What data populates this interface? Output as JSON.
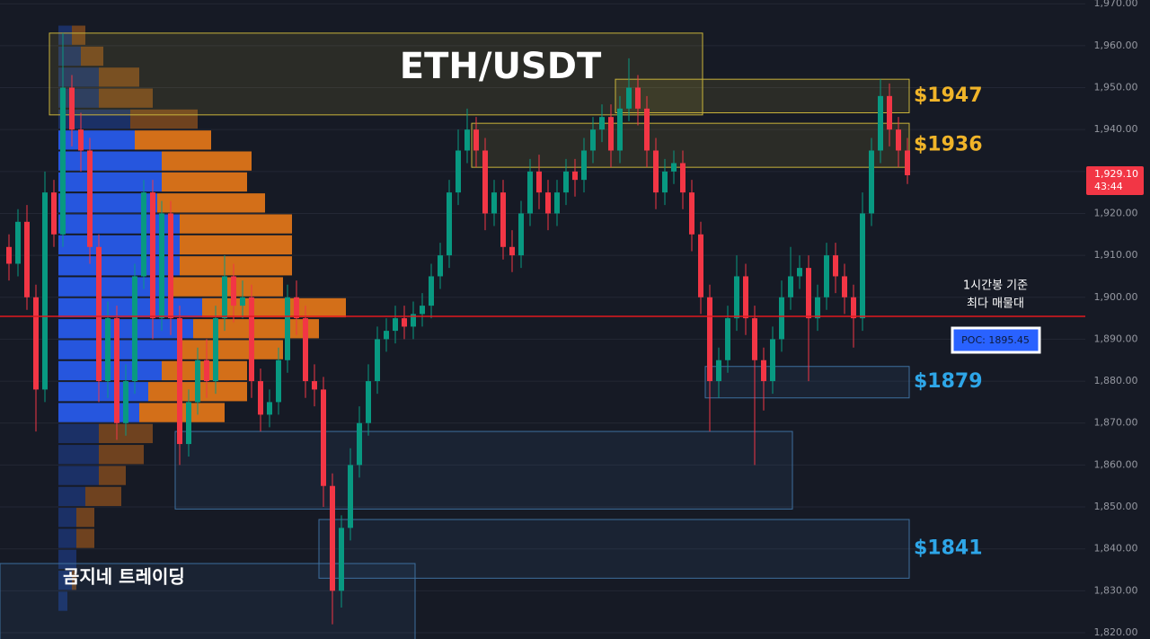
{
  "chart_data": {
    "type": "candlestick",
    "title": "ETH/USDT",
    "ylim": [
      1818.5,
      1970.9
    ],
    "yticks": [
      {
        "value": 1820,
        "label": "1,820.00"
      },
      {
        "value": 1830,
        "label": "1,830.00"
      },
      {
        "value": 1840,
        "label": "1,840.00"
      },
      {
        "value": 1850,
        "label": "1,850.00"
      },
      {
        "value": 1860,
        "label": "1,860.00"
      },
      {
        "value": 1870,
        "label": "1,870.00"
      },
      {
        "value": 1880,
        "label": "1,880.00"
      },
      {
        "value": 1890,
        "label": "1,890.00"
      },
      {
        "value": 1900,
        "label": "1,900.00"
      },
      {
        "value": 1910,
        "label": "1,910.00"
      },
      {
        "value": 1920,
        "label": "1,920.00"
      },
      {
        "value": 1930,
        "label": "1,930.00"
      },
      {
        "value": 1940,
        "label": "1,940.00"
      },
      {
        "value": 1950,
        "label": "1,950.00"
      },
      {
        "value": 1960,
        "label": "1,960.00"
      },
      {
        "value": 1970,
        "label": "1,970.00"
      }
    ],
    "grid": true,
    "up_color": "#089981",
    "down_color": "#f23645",
    "open": [
      1912,
      1908,
      1918,
      1900,
      1878,
      1925,
      1915,
      1950,
      1940,
      1935,
      1912,
      1880,
      1895,
      1870,
      1880,
      1905,
      1925,
      1895,
      1920,
      1895,
      1865,
      1875,
      1885,
      1880,
      1895,
      1905,
      1898,
      1900,
      1880,
      1872,
      1875,
      1885,
      1900,
      1895,
      1880,
      1878,
      1855,
      1830,
      1845,
      1860,
      1870,
      1880,
      1890,
      1892,
      1895,
      1893,
      1896,
      1898,
      1905,
      1910,
      1925,
      1935,
      1940,
      1935,
      1920,
      1925,
      1912,
      1910,
      1920,
      1930,
      1925,
      1920,
      1925,
      1930,
      1928,
      1935,
      1940,
      1943,
      1935,
      1945,
      1950,
      1945,
      1935,
      1925,
      1930,
      1932,
      1925,
      1915,
      1900,
      1880,
      1885,
      1895,
      1905,
      1895,
      1885,
      1880,
      1890,
      1900,
      1905,
      1907,
      1895,
      1900,
      1910,
      1905,
      1900,
      1895,
      1920,
      1935,
      1948,
      1940,
      1935
    ],
    "high": [
      1915,
      1921,
      1922,
      1903,
      1930,
      1928,
      1963,
      1953,
      1944,
      1938,
      1915,
      1899,
      1898,
      1884,
      1908,
      1928,
      1928,
      1923,
      1923,
      1898,
      1878,
      1888,
      1890,
      1898,
      1910,
      1908,
      1904,
      1903,
      1883,
      1878,
      1888,
      1903,
      1904,
      1898,
      1884,
      1881,
      1858,
      1848,
      1864,
      1874,
      1884,
      1893,
      1895,
      1898,
      1898,
      1899,
      1901,
      1908,
      1913,
      1928,
      1940,
      1945,
      1943,
      1938,
      1928,
      1928,
      1916,
      1923,
      1933,
      1934,
      1928,
      1928,
      1933,
      1933,
      1938,
      1943,
      1946,
      1946,
      1948,
      1957,
      1953,
      1948,
      1938,
      1933,
      1935,
      1935,
      1928,
      1918,
      1903,
      1888,
      1898,
      1910,
      1908,
      1898,
      1888,
      1893,
      1904,
      1912,
      1910,
      1910,
      1903,
      1913,
      1913,
      1908,
      1903,
      1925,
      1938,
      1952,
      1951,
      1943,
      1938
    ],
    "low": [
      1904,
      1905,
      1897,
      1868,
      1875,
      1912,
      1912,
      1936,
      1930,
      1908,
      1875,
      1876,
      1866,
      1867,
      1877,
      1902,
      1890,
      1892,
      1891,
      1860,
      1862,
      1872,
      1876,
      1877,
      1892,
      1894,
      1895,
      1876,
      1868,
      1869,
      1872,
      1882,
      1891,
      1876,
      1874,
      1850,
      1822,
      1826,
      1842,
      1857,
      1867,
      1877,
      1887,
      1889,
      1890,
      1890,
      1893,
      1895,
      1902,
      1907,
      1922,
      1932,
      1931,
      1916,
      1917,
      1909,
      1906,
      1907,
      1917,
      1921,
      1916,
      1917,
      1922,
      1924,
      1925,
      1932,
      1937,
      1931,
      1932,
      1942,
      1941,
      1931,
      1921,
      1922,
      1927,
      1921,
      1911,
      1896,
      1868,
      1876,
      1882,
      1892,
      1891,
      1860,
      1873,
      1877,
      1887,
      1897,
      1902,
      1880,
      1892,
      1897,
      1901,
      1896,
      1888,
      1892,
      1917,
      1932,
      1936,
      1931,
      1927
    ],
    "close": [
      1908,
      1918,
      1900,
      1878,
      1925,
      1915,
      1950,
      1940,
      1935,
      1912,
      1880,
      1895,
      1870,
      1880,
      1905,
      1925,
      1895,
      1920,
      1895,
      1865,
      1875,
      1885,
      1880,
      1895,
      1905,
      1898,
      1900,
      1880,
      1872,
      1875,
      1885,
      1900,
      1895,
      1880,
      1878,
      1855,
      1830,
      1845,
      1860,
      1870,
      1880,
      1890,
      1892,
      1895,
      1893,
      1896,
      1898,
      1905,
      1910,
      1925,
      1935,
      1940,
      1935,
      1920,
      1925,
      1912,
      1910,
      1920,
      1930,
      1925,
      1920,
      1925,
      1930,
      1928,
      1935,
      1940,
      1943,
      1935,
      1945,
      1950,
      1945,
      1935,
      1925,
      1930,
      1932,
      1925,
      1915,
      1900,
      1880,
      1885,
      1895,
      1905,
      1895,
      1885,
      1880,
      1890,
      1900,
      1905,
      1907,
      1895,
      1900,
      1910,
      1905,
      1900,
      1895,
      1920,
      1935,
      1948,
      1940,
      1935,
      1929.1
    ],
    "volume_profile": {
      "bin_size": 5,
      "value_area": [
        1870,
        1940
      ],
      "bins": [
        1825,
        1830,
        1835,
        1840,
        1845,
        1850,
        1855,
        1860,
        1865,
        1870,
        1875,
        1880,
        1885,
        1890,
        1895,
        1900,
        1905,
        1910,
        1915,
        1920,
        1925,
        1930,
        1935,
        1940,
        1945,
        1950,
        1955,
        1960
      ],
      "buy": [
        10,
        15,
        20,
        20,
        20,
        30,
        45,
        45,
        45,
        90,
        100,
        115,
        135,
        150,
        160,
        125,
        135,
        135,
        135,
        110,
        115,
        115,
        85,
        80,
        45,
        45,
        25,
        15
      ],
      "sell": [
        0,
        5,
        0,
        20,
        20,
        40,
        30,
        50,
        60,
        95,
        110,
        95,
        115,
        140,
        160,
        125,
        125,
        125,
        125,
        120,
        95,
        100,
        85,
        75,
        60,
        45,
        25,
        15
      ],
      "buy_color": "#2962ff",
      "sell_color": "#f57f17"
    },
    "zones": [
      {
        "low": 1943.5,
        "high": 1963,
        "start": 5,
        "end": 77,
        "color": "#c9b33a"
      },
      {
        "label": "$1947",
        "low": 1944,
        "high": 1952,
        "start": 68,
        "end": 100,
        "color": "#c9b33a"
      },
      {
        "label": "$1936",
        "low": 1931,
        "high": 1941.5,
        "start": 52,
        "end": 100,
        "color": "#c9b33a"
      },
      {
        "label": "$1879",
        "low": 1876,
        "high": 1883.5,
        "start": 78,
        "end": 100,
        "color": "#3d6f9e"
      },
      {
        "low": 1849.5,
        "high": 1868,
        "start": 19,
        "end": 87,
        "color": "#3d6f9e"
      },
      {
        "label": "$1841",
        "low": 1833,
        "high": 1847,
        "start": 35,
        "end": 100,
        "color": "#3d6f9e"
      },
      {
        "low": 1815,
        "high": 1836.5,
        "start": 0,
        "end": 45,
        "color": "#3d6f9e"
      }
    ],
    "watermark": "곰지네 트레이딩",
    "poc": 1895.45,
    "poc_label": "POC: 1895.45",
    "poc_note": [
      "1시간봉 기준",
      "최다 매물대"
    ],
    "poc_color": "#e0191f",
    "last_price": 1929.1,
    "last_price_label": "1,929.10",
    "countdown": "43:44"
  }
}
